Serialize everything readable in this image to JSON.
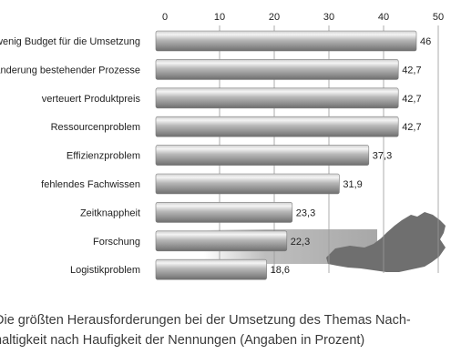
{
  "chart_data": {
    "type": "bar",
    "orientation": "horizontal",
    "categories": [
      "zu wenig Budget für die Umsetzung",
      "Veränderung bestehender Prozesse",
      "verteuert Produktpreis",
      "Ressourcenproblem",
      "Effizienzproblem",
      "fehlendes Fachwissen",
      "Zeitknappheit",
      "Forschung",
      "Logistikproblem"
    ],
    "values": [
      46,
      42.7,
      42.7,
      42.7,
      37.3,
      31.9,
      23.3,
      22.3,
      18.6
    ],
    "value_labels": [
      "46",
      "42,7",
      "42,7",
      "42,7",
      "37,3",
      "31,9",
      "23,3",
      "22,3",
      "18,6"
    ],
    "xlim": [
      0,
      50
    ],
    "x_ticks": [
      "0",
      "10",
      "20",
      "30",
      "40",
      "50"
    ],
    "grid": true,
    "bar_color": "#a9a9a9",
    "title": "",
    "xlabel": "",
    "ylabel": ""
  },
  "caption": {
    "line1": "Die größten Herausforderungen bei der Umsetzung des Themas Nach-",
    "line2": "haltigkeit nach Haufigkeit der Nennungen (Angaben in Prozent)"
  }
}
